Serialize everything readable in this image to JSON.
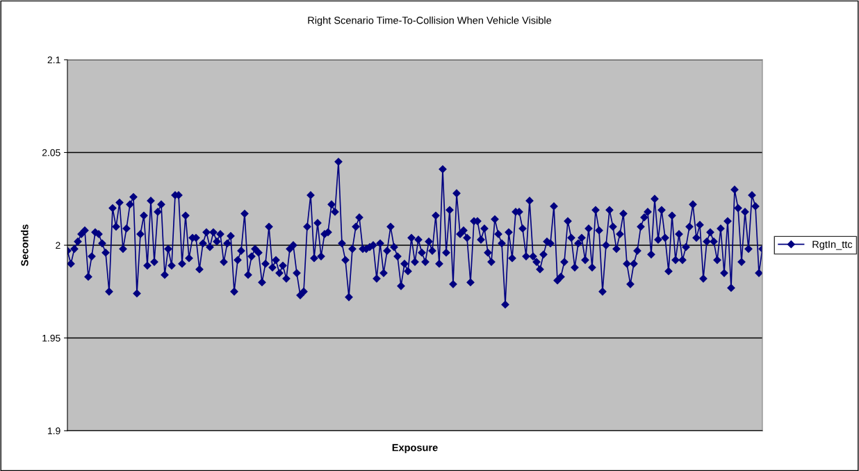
{
  "chart_data": {
    "type": "line",
    "title": "Right Scenario Time-To-Collision When Vehicle Visible",
    "xlabel": "Exposure",
    "ylabel": "Seconds",
    "categories": [
      null,
      null,
      null,
      null,
      null,
      null,
      null,
      null,
      null,
      null,
      null,
      null,
      null,
      null,
      null,
      null,
      null,
      null,
      null,
      null,
      null,
      null,
      null,
      null,
      null,
      null,
      null,
      null,
      null,
      null,
      null,
      null,
      null,
      null,
      null,
      null,
      null,
      null,
      null,
      null,
      null,
      null,
      null,
      null,
      null,
      null,
      null,
      null,
      null,
      null,
      null,
      null,
      null,
      null,
      null,
      null,
      null,
      null,
      null,
      null,
      null,
      null,
      null,
      null,
      null,
      null,
      null,
      null,
      null,
      null,
      null,
      null,
      null,
      null,
      null,
      null,
      null,
      null,
      null,
      null,
      null,
      null,
      null,
      null,
      null,
      null,
      null,
      null,
      null,
      null,
      null,
      null,
      null,
      null,
      null,
      null,
      null,
      null,
      null,
      null,
      null,
      null,
      null,
      null,
      null,
      null,
      null,
      null,
      null,
      null,
      null,
      null,
      null,
      null,
      null,
      null,
      null,
      null,
      null,
      null,
      null,
      null,
      null,
      null,
      null,
      null,
      null,
      null,
      null,
      null,
      null,
      null,
      null,
      null,
      null,
      null,
      null,
      null,
      null,
      null,
      null,
      null,
      null,
      null,
      null,
      null,
      null,
      null,
      null,
      null,
      null,
      null,
      null,
      null,
      null,
      null,
      null,
      null,
      null,
      null,
      null,
      null,
      null,
      null,
      null,
      null,
      null,
      null,
      null,
      null,
      null,
      null,
      null,
      null,
      null,
      null,
      null,
      null,
      null,
      null,
      null,
      null,
      null,
      null,
      null,
      null,
      null,
      null,
      null,
      null,
      null,
      null,
      null,
      null,
      null,
      null,
      null,
      null,
      null,
      null,
      null
    ],
    "series": [
      {
        "name": "RgtIn_ttc",
        "color": "#000080",
        "values": [
          1.997,
          1.99,
          1.998,
          2.002,
          2.006,
          2.008,
          1.983,
          1.994,
          2.007,
          2.006,
          2.001,
          1.996,
          1.975,
          2.02,
          2.01,
          2.023,
          1.998,
          2.009,
          2.022,
          2.026,
          1.974,
          2.006,
          2.016,
          1.989,
          2.024,
          1.991,
          2.018,
          2.022,
          1.984,
          1.998,
          1.989,
          2.027,
          2.027,
          1.99,
          2.016,
          1.993,
          2.004,
          2.004,
          1.987,
          2.001,
          2.007,
          1.999,
          2.007,
          2.002,
          2.006,
          1.991,
          2.001,
          2.005,
          1.975,
          1.992,
          1.997,
          2.017,
          1.984,
          1.994,
          1.998,
          1.996,
          1.98,
          1.99,
          2.01,
          1.988,
          1.992,
          1.985,
          1.989,
          1.982,
          1.998,
          2.0,
          1.985,
          1.973,
          1.975,
          2.01,
          2.027,
          1.993,
          2.012,
          1.994,
          2.006,
          2.007,
          2.022,
          2.018,
          2.045,
          2.001,
          1.992,
          1.972,
          1.998,
          2.01,
          2.015,
          1.998,
          1.998,
          1.999,
          2.0,
          1.982,
          2.001,
          1.985,
          1.997,
          2.01,
          1.999,
          1.994,
          1.978,
          1.99,
          1.986,
          2.004,
          1.991,
          2.003,
          1.996,
          1.991,
          2.002,
          1.997,
          2.016,
          1.99,
          2.041,
          1.996,
          2.019,
          1.979,
          2.028,
          2.006,
          2.008,
          2.004,
          1.98,
          2.013,
          2.013,
          2.003,
          2.009,
          1.996,
          1.991,
          2.014,
          2.006,
          2.001,
          1.968,
          2.007,
          1.993,
          2.018,
          2.018,
          2.009,
          1.994,
          2.024,
          1.994,
          1.991,
          1.987,
          1.995,
          2.002,
          2.001,
          2.021,
          1.981,
          1.983,
          1.991,
          2.013,
          2.004,
          1.988,
          2.001,
          2.004,
          1.992,
          2.009,
          1.988,
          2.019,
          2.008,
          1.975,
          2.0,
          2.019,
          2.01,
          1.998,
          2.006,
          2.017,
          1.99,
          1.979,
          1.99,
          1.997,
          2.01,
          2.015,
          2.018,
          1.995,
          2.025,
          2.003,
          2.019,
          2.004,
          1.986,
          2.016,
          1.992,
          2.006,
          1.992,
          1.999,
          2.01,
          2.022,
          2.004,
          2.011,
          1.982,
          2.002,
          2.007,
          2.002,
          1.992,
          2.009,
          1.985,
          2.013,
          1.977,
          2.03,
          2.02,
          1.991,
          2.018,
          1.998,
          2.027,
          2.021,
          1.985,
          1.998
        ]
      }
    ],
    "ylim": [
      1.9,
      2.1
    ],
    "yticks": [
      1.9,
      1.95,
      2,
      2.05,
      2.1
    ],
    "grid": "y",
    "legend": "right",
    "marker": "diamond",
    "line_style": "solid"
  }
}
